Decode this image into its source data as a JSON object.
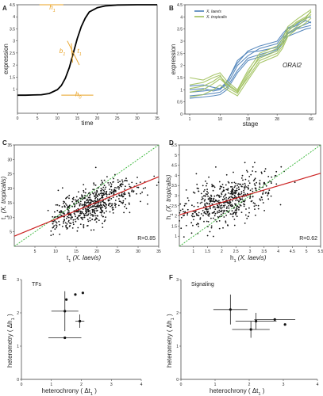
{
  "chart_data": [
    {
      "panel": "A",
      "type": "line",
      "xlabel": "time",
      "ylabel": "expression",
      "xlim": [
        0,
        35
      ],
      "ylim": [
        0,
        4.5
      ],
      "xticks": [
        "0",
        "5",
        "10",
        "15",
        "20",
        "25",
        "30",
        "35"
      ],
      "yticks": [
        "1",
        "1.5",
        "2",
        "2.5",
        "3",
        "3.5",
        "4",
        "4.5"
      ],
      "curve": {
        "x": [
          0,
          2,
          4,
          6,
          8,
          10,
          11,
          12,
          13,
          14,
          15,
          16,
          17,
          18,
          20,
          22,
          25,
          30,
          35
        ],
        "y": [
          0.75,
          0.75,
          0.76,
          0.77,
          0.82,
          0.98,
          1.15,
          1.45,
          1.9,
          2.5,
          3.1,
          3.6,
          3.95,
          4.2,
          4.38,
          4.45,
          4.49,
          4.5,
          4.5
        ]
      },
      "annotations": [
        {
          "label": "h",
          "sub": "1",
          "x": 8,
          "y": 4.3
        },
        {
          "label": "b",
          "sub": "1",
          "x": 10.5,
          "y": 2.5
        },
        {
          "label": "t",
          "sub": "1",
          "x": 15,
          "y": 2.5
        },
        {
          "label": "h",
          "sub": "0",
          "x": 14.5,
          "y": 0.7
        }
      ]
    },
    {
      "panel": "B",
      "type": "line",
      "xlabel": "stage",
      "ylabel": "expression",
      "xlim": [
        0,
        66
      ],
      "ylim": [
        0,
        4.5
      ],
      "xticks": [
        "1",
        "10",
        "18",
        "28",
        "66"
      ],
      "yticks": [
        "0",
        "0.5",
        "1",
        "1.5",
        "2",
        "2.5",
        "3",
        "3.5",
        "4",
        "4.5"
      ],
      "legend": [
        {
          "name": "X. laevis",
          "color": "#4a7fb8"
        },
        {
          "name": "X. tropicalis",
          "color": "#9fc05a"
        }
      ],
      "gene_label": "ORAI2",
      "x": [
        1,
        5,
        8,
        10,
        12,
        15,
        18,
        22,
        28,
        34,
        40,
        50,
        60,
        66
      ],
      "series": [
        {
          "group": "X. laevis",
          "values": [
            1.0,
            1.05,
            0.95,
            1.0,
            1.3,
            2.2,
            2.55,
            2.6,
            2.75,
            3.1,
            3.35,
            3.55,
            3.7,
            3.8
          ]
        },
        {
          "group": "X. laevis",
          "values": [
            0.9,
            0.95,
            1.0,
            1.05,
            1.2,
            2.0,
            2.4,
            2.7,
            2.9,
            3.2,
            3.5,
            3.65,
            3.85,
            3.75
          ]
        },
        {
          "group": "X. laevis",
          "values": [
            0.75,
            0.8,
            0.85,
            0.9,
            1.1,
            1.8,
            2.3,
            2.45,
            2.65,
            3.0,
            3.3,
            3.5,
            3.6,
            3.65
          ]
        },
        {
          "group": "X. laevis",
          "values": [
            1.15,
            1.2,
            1.1,
            1.05,
            1.35,
            2.1,
            2.6,
            2.8,
            3.0,
            3.3,
            3.55,
            3.7,
            3.95,
            4.0
          ]
        },
        {
          "group": "X. laevis",
          "values": [
            0.65,
            0.7,
            0.75,
            0.8,
            1.0,
            1.7,
            2.2,
            2.35,
            2.6,
            2.9,
            3.2,
            3.35,
            3.5,
            3.55
          ]
        },
        {
          "group": "X. tropicalis",
          "values": [
            1.2,
            1.3,
            1.5,
            1.6,
            1.1,
            0.85,
            1.6,
            2.4,
            2.7,
            2.9,
            3.5,
            3.8,
            4.0,
            4.2
          ]
        },
        {
          "group": "X. tropicalis",
          "values": [
            0.9,
            1.0,
            1.25,
            1.45,
            1.2,
            0.9,
            1.5,
            2.2,
            2.5,
            2.8,
            3.3,
            3.6,
            3.9,
            4.1
          ]
        },
        {
          "group": "X. tropicalis",
          "values": [
            1.5,
            1.4,
            1.6,
            1.7,
            1.35,
            1.0,
            1.8,
            2.5,
            2.8,
            3.1,
            3.6,
            3.9,
            4.15,
            4.3
          ]
        },
        {
          "group": "X. tropicalis",
          "values": [
            0.7,
            0.8,
            1.0,
            1.2,
            1.0,
            0.75,
            1.4,
            2.1,
            2.4,
            2.7,
            3.2,
            3.5,
            3.75,
            3.95
          ]
        },
        {
          "group": "X. tropicalis",
          "values": [
            1.05,
            1.15,
            1.35,
            1.55,
            1.25,
            0.95,
            1.7,
            2.3,
            2.6,
            3.0,
            3.4,
            3.75,
            3.95,
            4.25
          ]
        }
      ]
    },
    {
      "panel": "C",
      "type": "scatter",
      "xlabel_prefix": "t",
      "xlabel_sub": "1",
      "xlabel_suffix": " (X. laevis)",
      "ylabel_prefix": "t",
      "ylabel_sub": "1",
      "ylabel_suffix": " (X. tropicalis)",
      "xlim": [
        0,
        35
      ],
      "ylim": [
        0,
        35
      ],
      "xticks": [
        "5",
        "10",
        "15",
        "20",
        "25",
        "30",
        "35"
      ],
      "yticks": [
        "5",
        "10",
        "15",
        "20",
        "25",
        "30",
        "35"
      ],
      "r_label": "R=0.85",
      "fit_line": {
        "color": "#cc2222",
        "x": [
          0,
          35
        ],
        "y": [
          3.5,
          24
        ]
      },
      "identity_line": {
        "color": "#44bb44",
        "x": [
          0,
          35
        ],
        "y": [
          0,
          35
        ]
      },
      "n_points": 600
    },
    {
      "panel": "D",
      "type": "scatter",
      "xlabel_prefix": "h",
      "xlabel_sub": "1",
      "xlabel_suffix": " (X. laevis)",
      "ylabel_prefix": "h",
      "ylabel_sub": "1",
      "ylabel_suffix": " (X. tropicalis)",
      "xlim": [
        0.5,
        5.5
      ],
      "ylim": [
        0.5,
        5.5
      ],
      "xticks": [
        "1",
        "1.5",
        "2",
        "2.5",
        "3",
        "3.5",
        "4",
        "4.5",
        "5",
        "5.5"
      ],
      "yticks": [
        "1",
        "1.5",
        "2",
        "2.5",
        "3",
        "3.5",
        "4",
        "4.5",
        "5",
        "5.5"
      ],
      "r_label": "R=0.62",
      "fit_line": {
        "color": "#cc2222",
        "x": [
          0.5,
          5.5
        ],
        "y": [
          2.05,
          4.1
        ]
      },
      "identity_line": {
        "color": "#44bb44",
        "x": [
          0.5,
          5.5
        ],
        "y": [
          0.5,
          5.5
        ]
      },
      "n_points": 560
    },
    {
      "panel": "E",
      "type": "scatter",
      "title": "TFs",
      "xlabel_prefix": "heterochrony ( ",
      "xlabel_delta": "Δt",
      "xlabel_sub": "1",
      "xlabel_suffix": " )",
      "ylabel_prefix": "heterometry ( ",
      "ylabel_delta": "Δh",
      "ylabel_sub": "1",
      "ylabel_suffix": " )",
      "xlim": [
        0,
        4
      ],
      "ylim": [
        0,
        3
      ],
      "xticks": [
        "0",
        "1",
        "2",
        "3",
        "4"
      ],
      "yticks": [
        "0",
        "1",
        "2",
        "3"
      ],
      "points": [
        {
          "label": "",
          "x": 1.45,
          "y": 2.05,
          "xerr": 0.45,
          "yerr": 0.6
        },
        {
          "label": "",
          "x": 1.95,
          "y": 1.75,
          "xerr": 0.15,
          "yerr": 0.2
        },
        {
          "label": "",
          "x": 1.45,
          "y": 1.25,
          "xerr": 0.55,
          "yerr": 0.0
        },
        {
          "label": "",
          "x": 1.5,
          "y": 2.4,
          "xerr": 0.0,
          "yerr": 0.0
        },
        {
          "label": "",
          "x": 1.8,
          "y": 2.55,
          "xerr": 0.0,
          "yerr": 0.0
        },
        {
          "label": "",
          "x": 2.05,
          "y": 2.6,
          "xerr": 0.0,
          "yerr": 0.0
        }
      ]
    },
    {
      "panel": "F",
      "type": "scatter",
      "title": "Signaling",
      "xlabel_prefix": "heterochrony ( ",
      "xlabel_delta": "Δt",
      "xlabel_sub": "1",
      "xlabel_suffix": " )",
      "ylabel_prefix": "heterometry ( ",
      "ylabel_delta": "Δh",
      "ylabel_sub": "1",
      "ylabel_suffix": " )",
      "xlim": [
        0,
        4
      ],
      "ylim": [
        0,
        3
      ],
      "xticks": [
        "0",
        "1",
        "2",
        "3",
        "4"
      ],
      "yticks": [
        "0",
        "1",
        "2",
        "3"
      ],
      "points": [
        {
          "label": "",
          "x": 1.45,
          "y": 2.1,
          "xerr": 0.5,
          "yerr": 0.45
        },
        {
          "label": "",
          "x": 2.2,
          "y": 1.75,
          "xerr": 0.6,
          "yerr": 0.25
        },
        {
          "label": "",
          "x": 2.05,
          "y": 1.5,
          "xerr": 0.55,
          "yerr": 0.25
        },
        {
          "label": "",
          "x": 2.75,
          "y": 1.8,
          "xerr": 0.6,
          "yerr": 0.0
        },
        {
          "label": "",
          "x": 3.05,
          "y": 1.65,
          "xerr": 0.0,
          "yerr": 0.0
        }
      ]
    }
  ],
  "panel_letters": [
    "A",
    "B",
    "C",
    "D",
    "E",
    "F"
  ]
}
